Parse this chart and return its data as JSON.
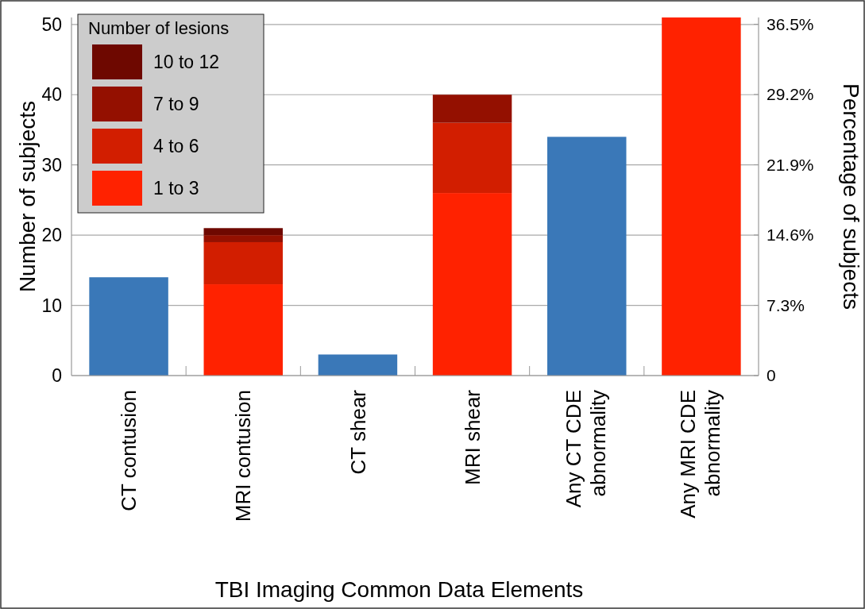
{
  "chart_data": {
    "type": "bar",
    "stacked": true,
    "xlabel": "TBI Imaging Common Data Elements",
    "ylabel": "Number of subjects",
    "y2label": "Percentage of subjects",
    "legend_title": "Number of lesions",
    "categories": [
      "CT contusion",
      "MRI contusion",
      "CT shear",
      "MRI shear",
      "Any CT CDE abnormality",
      "Any MRI CDE abnormality"
    ],
    "series": [
      {
        "color": "#3a78b8",
        "values": [
          14,
          null,
          3,
          null,
          34,
          null
        ]
      },
      {
        "name": "1 to 3",
        "color": "#ff2200",
        "values": [
          null,
          13,
          null,
          26,
          null,
          null
        ]
      },
      {
        "name": "4 to 6",
        "color": "#d21e00",
        "values": [
          null,
          6,
          null,
          10,
          null,
          null
        ]
      },
      {
        "name": "7 to 9",
        "color": "#941000",
        "values": [
          null,
          1,
          null,
          4,
          null,
          null
        ]
      },
      {
        "name": "10 to 12",
        "color": "#6e0800",
        "values": [
          null,
          1,
          null,
          null,
          null,
          null
        ]
      },
      {
        "color": "#ff2200",
        "values": [
          null,
          null,
          null,
          null,
          null,
          51
        ]
      }
    ],
    "ylim": [
      0,
      51
    ],
    "yticks": [
      0,
      10,
      20,
      30,
      40,
      50
    ],
    "y2lim": [
      0,
      37.2
    ],
    "y2ticks": [
      0,
      {
        "value": 7.3,
        "label": "7.3%"
      },
      {
        "value": 14.6,
        "label": "14.6%"
      },
      {
        "value": 21.9,
        "label": "21.9%"
      },
      {
        "value": 29.2,
        "label": "29.2%"
      },
      {
        "value": 36.5,
        "label": "36.5%"
      }
    ],
    "grid": "y",
    "legend": "top left"
  }
}
